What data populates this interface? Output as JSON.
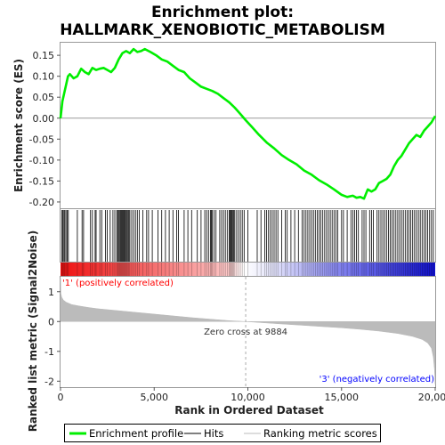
{
  "title_line1": "Enrichment plot:",
  "title_line2": "HALLMARK_XENOBIOTIC_METABOLISM",
  "colors": {
    "es_line": "#00ee00",
    "hits": "#000000",
    "positive": "#ff0000",
    "negative": "#0000ff",
    "metric_fill": "#bbbbbb",
    "zero_cross_line": "#aaaaaa",
    "positive_label": "#ff0000",
    "negative_label": "#0000ff"
  },
  "annotations": {
    "positive_label": "'1' (positively correlated)",
    "negative_label": "'3' (negatively correlated)",
    "zero_cross": "Zero cross at 9884"
  },
  "legend": {
    "enrichment": "Enrichment profile",
    "hits": "Hits",
    "metric": "Ranking metric scores"
  },
  "chart_data": {
    "type": "line",
    "xlabel": "Rank in Ordered Dataset",
    "x_range": [
      0,
      20000
    ],
    "x_ticks": [
      0,
      5000,
      10000,
      15000,
      20000
    ],
    "x_tick_labels": [
      "0",
      "5,000",
      "10,000",
      "15,000",
      "20,000"
    ],
    "total_rank": 20000,
    "zero_cross": 9884,
    "es_panel": {
      "ylabel": "Enrichment score (ES)",
      "ylim": [
        -0.215,
        0.18
      ],
      "y_ticks": [
        -0.2,
        -0.15,
        -0.1,
        -0.05,
        0.0,
        0.05,
        0.1,
        0.15
      ],
      "y_tick_labels": [
        "-0.20",
        "-0.15",
        "-0.10",
        "-0.05",
        "0.00",
        "0.05",
        "0.10",
        "0.15"
      ],
      "x": [
        0,
        100,
        200,
        400,
        500,
        700,
        900,
        1100,
        1300,
        1500,
        1700,
        1900,
        2100,
        2300,
        2500,
        2700,
        2900,
        3100,
        3300,
        3500,
        3700,
        3900,
        4100,
        4300,
        4500,
        4800,
        5100,
        5400,
        5700,
        6000,
        6300,
        6600,
        6900,
        7200,
        7500,
        7800,
        8100,
        8400,
        8700,
        9000,
        9300,
        9600,
        9884,
        10200,
        10600,
        11000,
        11400,
        11800,
        12200,
        12600,
        13000,
        13400,
        13800,
        14200,
        14600,
        15000,
        15300,
        15600,
        15800,
        16000,
        16200,
        16400,
        16600,
        16800,
        17000,
        17200,
        17400,
        17600,
        17800,
        18000,
        18200,
        18400,
        18600,
        18800,
        19000,
        19200,
        19400,
        19600,
        19800,
        20000
      ],
      "y": [
        0.0,
        0.04,
        0.06,
        0.1,
        0.105,
        0.095,
        0.1,
        0.118,
        0.11,
        0.105,
        0.12,
        0.115,
        0.118,
        0.12,
        0.115,
        0.11,
        0.12,
        0.14,
        0.155,
        0.16,
        0.155,
        0.165,
        0.158,
        0.16,
        0.165,
        0.158,
        0.15,
        0.14,
        0.135,
        0.125,
        0.115,
        0.11,
        0.095,
        0.085,
        0.075,
        0.07,
        0.065,
        0.058,
        0.048,
        0.038,
        0.025,
        0.01,
        -0.005,
        -0.02,
        -0.04,
        -0.058,
        -0.072,
        -0.088,
        -0.1,
        -0.11,
        -0.125,
        -0.135,
        -0.148,
        -0.158,
        -0.17,
        -0.183,
        -0.188,
        -0.185,
        -0.19,
        -0.188,
        -0.192,
        -0.17,
        -0.175,
        -0.17,
        -0.155,
        -0.15,
        -0.145,
        -0.135,
        -0.115,
        -0.1,
        -0.09,
        -0.075,
        -0.06,
        -0.05,
        -0.04,
        -0.045,
        -0.03,
        -0.02,
        -0.01,
        0.005
      ]
    },
    "hits": [
      60,
      120,
      180,
      230,
      290,
      350,
      420,
      900,
      1150,
      1230,
      1600,
      1700,
      1850,
      1900,
      2100,
      2200,
      2400,
      2500,
      2650,
      2800,
      2900,
      3000,
      3050,
      3100,
      3150,
      3200,
      3250,
      3300,
      3350,
      3400,
      3450,
      3500,
      3550,
      3600,
      3650,
      3700,
      3800,
      3900,
      4000,
      4100,
      4200,
      4400,
      4600,
      4700,
      4900,
      5200,
      5400,
      5600,
      5800,
      6000,
      6200,
      6300,
      6600,
      6800,
      7000,
      7300,
      7500,
      7700,
      7800,
      7900,
      8000,
      8050,
      8100,
      8200,
      8300,
      8500,
      8600,
      8700,
      8800,
      8900,
      9000,
      9050,
      9100,
      9150,
      9200,
      9250,
      9300,
      9400,
      9500,
      9600,
      9700,
      9800,
      10000,
      10500,
      10700,
      10900,
      11000,
      11100,
      11200,
      11300,
      11400,
      11500,
      11600,
      11800,
      12000,
      12100,
      12300,
      12500,
      12700,
      12900,
      13000,
      13100,
      13200,
      13300,
      13400,
      13500,
      13600,
      13700,
      13800,
      13900,
      14000,
      14100,
      14200,
      14300,
      14400,
      14500,
      14600,
      14700,
      14800,
      15000,
      15100,
      15300,
      15500,
      15600,
      15700,
      15800,
      15900,
      16100,
      16200,
      16300,
      16500,
      16600,
      16700,
      16900,
      17000,
      17100,
      17200,
      17300,
      17400,
      17500,
      17600,
      17700,
      17800,
      17900,
      18000,
      18100,
      18200,
      18300,
      18400,
      18500,
      18600,
      18700,
      18800,
      18900,
      19000,
      19100,
      19200,
      19300,
      19400,
      19500,
      19600,
      19700,
      19800,
      19900
    ],
    "metric_panel": {
      "ylabel": "Ranked list metric (Signal2Noise)",
      "ylim": [
        -2.2,
        1.5
      ],
      "y_ticks": [
        -2,
        -1,
        0,
        1
      ],
      "y_tick_labels": [
        "-2",
        "-1",
        "0",
        "1"
      ],
      "x": [
        0,
        20,
        60,
        150,
        300,
        600,
        1000,
        1500,
        2000,
        3000,
        4000,
        5000,
        6000,
        7000,
        8000,
        9000,
        9884,
        11000,
        12000,
        13000,
        14000,
        15000,
        16000,
        17000,
        18000,
        18800,
        19300,
        19600,
        19800,
        19900,
        19960,
        20000
      ],
      "y": [
        1.45,
        0.95,
        0.82,
        0.72,
        0.65,
        0.57,
        0.52,
        0.47,
        0.43,
        0.37,
        0.31,
        0.25,
        0.19,
        0.13,
        0.08,
        0.03,
        0.0,
        -0.05,
        -0.09,
        -0.13,
        -0.17,
        -0.21,
        -0.26,
        -0.32,
        -0.4,
        -0.5,
        -0.6,
        -0.72,
        -0.9,
        -1.2,
        -1.6,
        -2.1
      ]
    }
  }
}
